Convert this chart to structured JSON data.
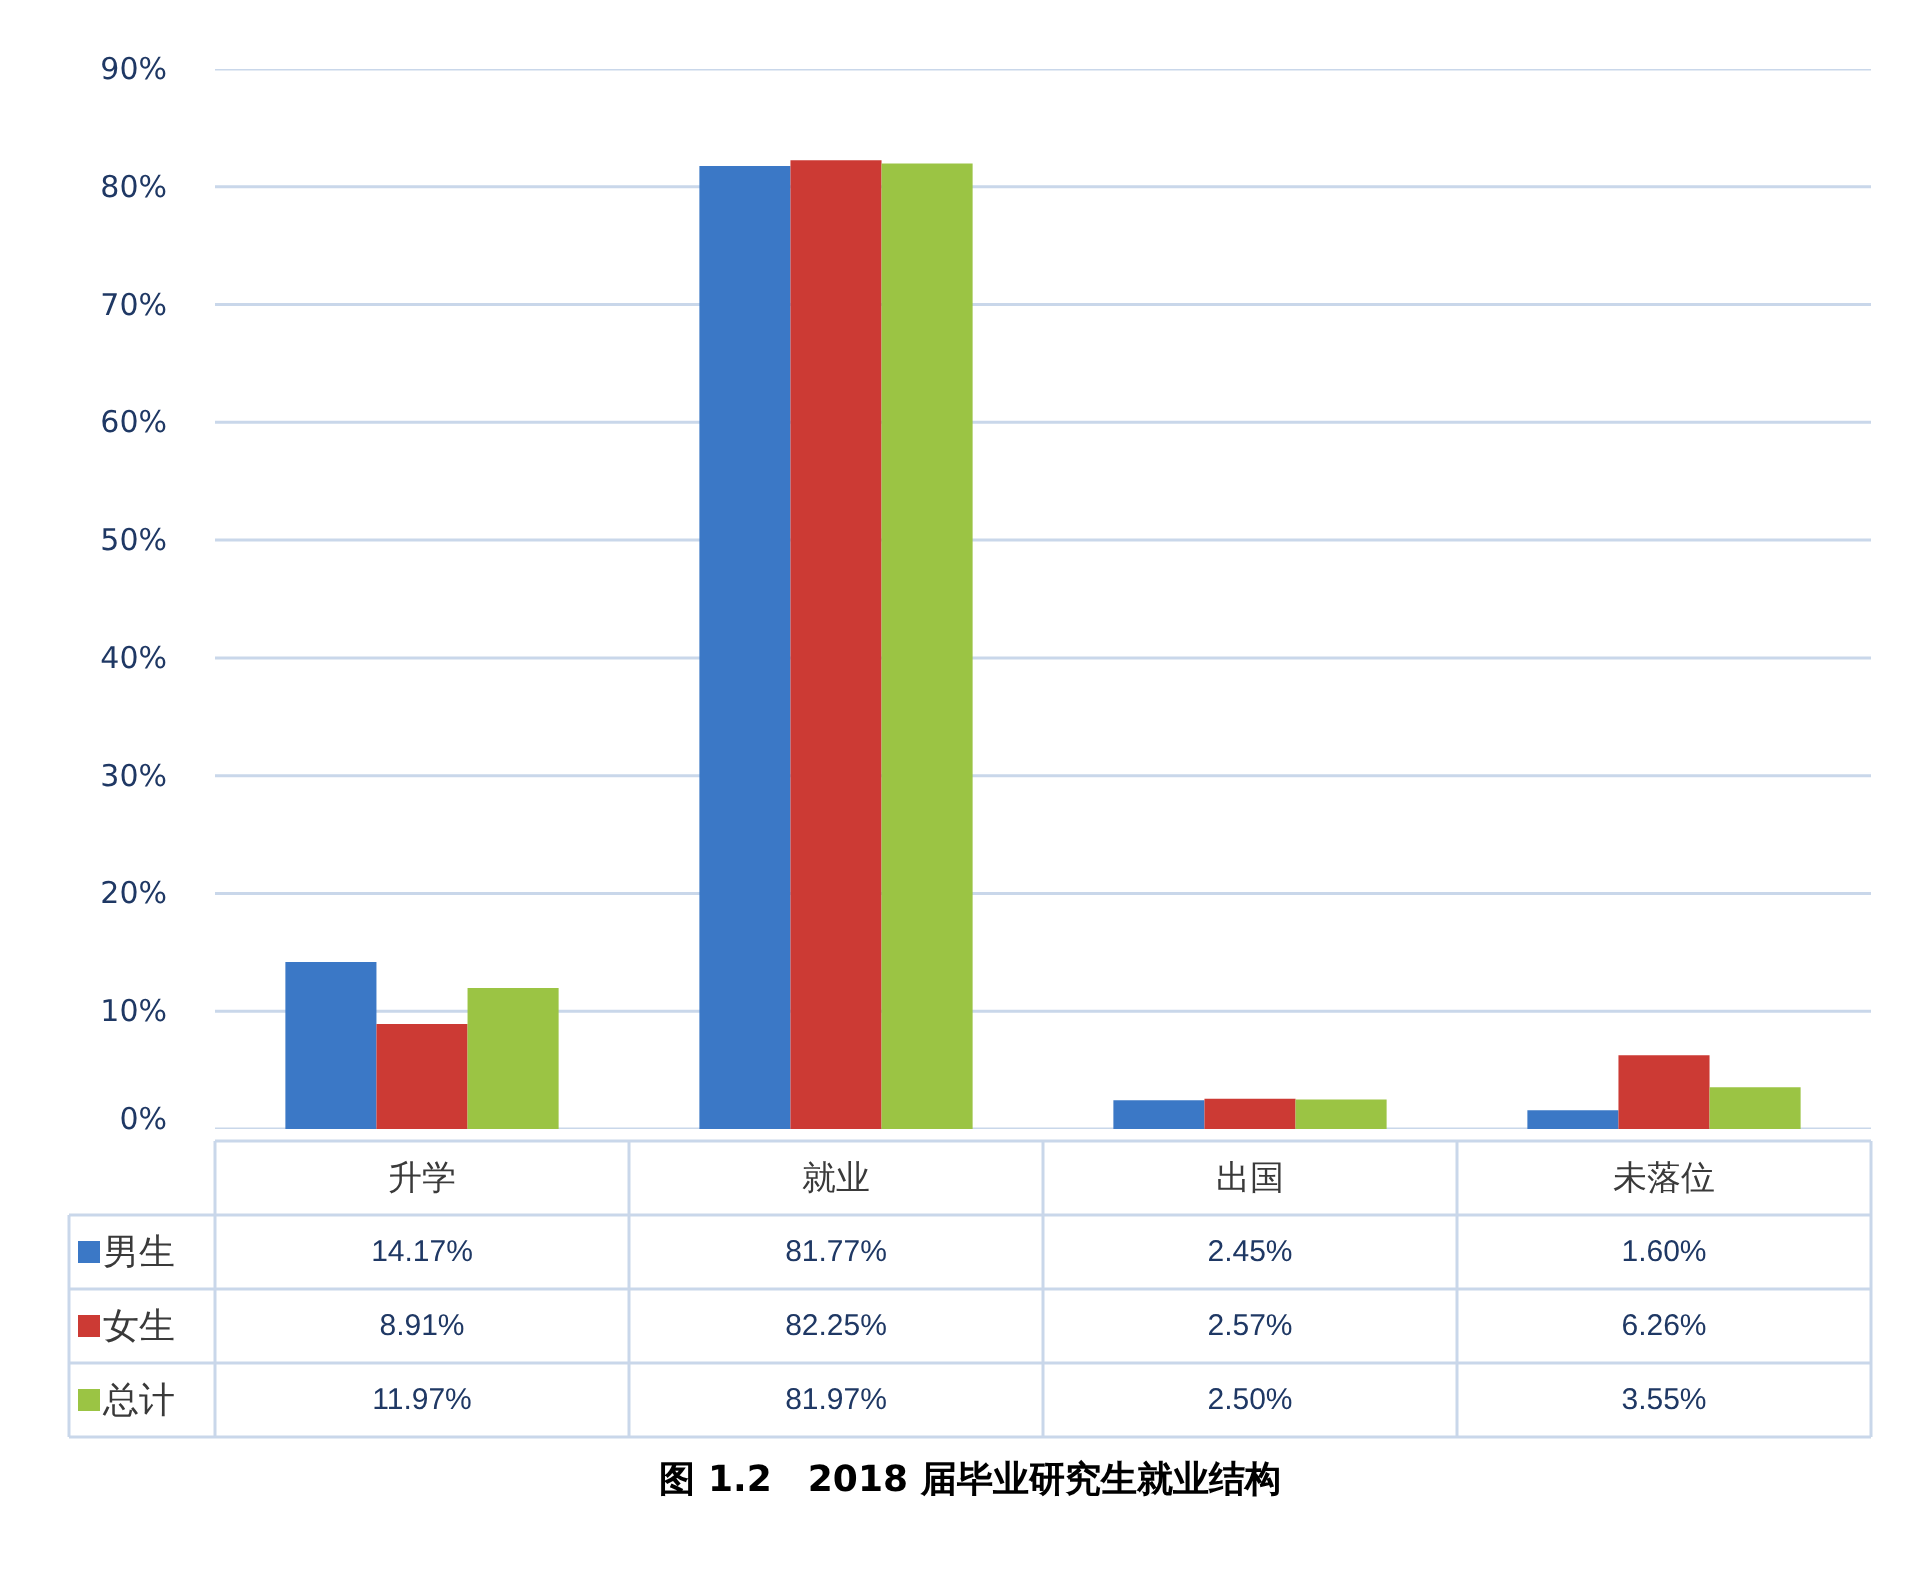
{
  "chart_data": {
    "type": "bar",
    "title": "图 1.2　2018 届毕业研究生就业结构",
    "categories": [
      "升学",
      "就业",
      "出国",
      "未落位"
    ],
    "series": [
      {
        "name": "男生",
        "color": "#3b78c6",
        "values": [
          14.17,
          81.77,
          2.45,
          1.6
        ],
        "value_labels": [
          "14.17%",
          "81.77%",
          "2.45%",
          "1.60%"
        ]
      },
      {
        "name": "女生",
        "color": "#cc3a34",
        "values": [
          8.91,
          82.25,
          2.57,
          6.26
        ],
        "value_labels": [
          "8.91%",
          "82.25%",
          "2.57%",
          "6.26%"
        ]
      },
      {
        "name": "总计",
        "color": "#9bc444",
        "values": [
          11.97,
          81.97,
          2.5,
          3.55
        ],
        "value_labels": [
          "11.97%",
          "81.97%",
          "2.50%",
          "3.55%"
        ]
      }
    ],
    "ylim": [
      0,
      90
    ],
    "yticks": [
      {
        "value": 0,
        "label": "0%"
      },
      {
        "value": 10,
        "label": "10%"
      },
      {
        "value": 20,
        "label": "20%"
      },
      {
        "value": 30,
        "label": "30%"
      },
      {
        "value": 40,
        "label": "40%"
      },
      {
        "value": 50,
        "label": "50%"
      },
      {
        "value": 60,
        "label": "60%"
      },
      {
        "value": 70,
        "label": "70%"
      },
      {
        "value": 80,
        "label": "80%"
      },
      {
        "value": 90,
        "label": "90%"
      }
    ],
    "grid": "y",
    "legend": "bottom"
  }
}
